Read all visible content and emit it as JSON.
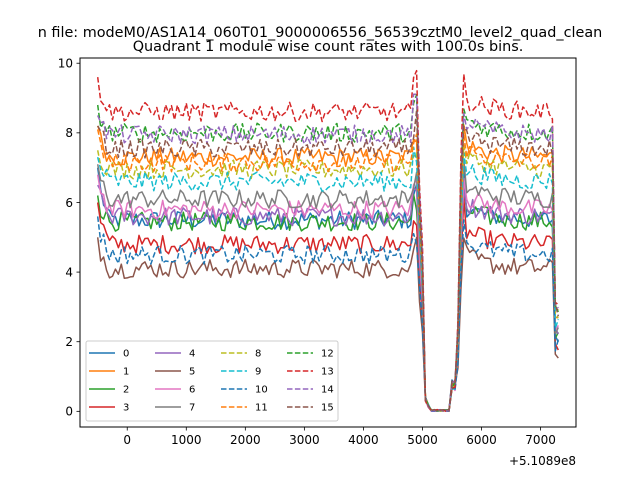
{
  "chart_data": {
    "type": "line",
    "suptitle": "n file: modeM0/AS1A14_060T01_9000006556_56539cztM0_level2_quad_clean",
    "title": "Quadrant 1 module wise count rates with 100.0s bins.",
    "xlabel": "",
    "ylabel": "",
    "x_offset_label": "+5.1089e8",
    "xlim": [
      -800,
      7600
    ],
    "ylim": [
      -0.45,
      10.15
    ],
    "xticks": [
      0,
      1000,
      2000,
      3000,
      4000,
      5000,
      6000,
      7000
    ],
    "xtick_labels": [
      "0",
      "1000",
      "2000",
      "3000",
      "4000",
      "5000",
      "6000",
      "7000"
    ],
    "yticks": [
      0,
      2,
      4,
      6,
      8,
      10
    ],
    "ytick_labels": [
      "0",
      "2",
      "4",
      "6",
      "8",
      "10"
    ],
    "grid": false,
    "legend_position": "lower-left",
    "legend_columns": 4,
    "x_start": -500,
    "x_step": 50,
    "x_end": 7300,
    "gap_start": 5000,
    "gap_end": 5550,
    "peak_x": 5700,
    "series": [
      {
        "name": "0",
        "color": "#1f77b4",
        "dashed": false,
        "level": 5.5,
        "start": 7.0
      },
      {
        "name": "1",
        "color": "#ff7f0e",
        "dashed": false,
        "level": 7.3,
        "start": 8.2
      },
      {
        "name": "2",
        "color": "#2ca02c",
        "dashed": false,
        "level": 5.45,
        "start": 6.2
      },
      {
        "name": "3",
        "color": "#d62728",
        "dashed": false,
        "level": 4.8,
        "start": 6.0
      },
      {
        "name": "4",
        "color": "#9467bd",
        "dashed": false,
        "level": 5.6,
        "start": 6.5
      },
      {
        "name": "5",
        "color": "#8c564b",
        "dashed": false,
        "level": 4.1,
        "start": 5.0
      },
      {
        "name": "6",
        "color": "#e377c2",
        "dashed": false,
        "level": 5.8,
        "start": 6.8
      },
      {
        "name": "7",
        "color": "#7f7f7f",
        "dashed": false,
        "level": 6.1,
        "start": 7.1
      },
      {
        "name": "8",
        "color": "#bcbd22",
        "dashed": true,
        "level": 6.95,
        "start": 7.5
      },
      {
        "name": "9",
        "color": "#17becf",
        "dashed": true,
        "level": 6.6,
        "start": 7.3
      },
      {
        "name": "10",
        "color": "#1f77b4",
        "dashed": true,
        "level": 4.5,
        "start": 5.6
      },
      {
        "name": "11",
        "color": "#ff7f0e",
        "dashed": true,
        "level": 7.15,
        "start": 8.1
      },
      {
        "name": "12",
        "color": "#2ca02c",
        "dashed": true,
        "level": 8.0,
        "start": 8.8
      },
      {
        "name": "13",
        "color": "#d62728",
        "dashed": true,
        "level": 8.6,
        "start": 9.6
      },
      {
        "name": "14",
        "color": "#9467bd",
        "dashed": true,
        "level": 7.95,
        "start": 8.5
      },
      {
        "name": "15",
        "color": "#8c564b",
        "dashed": true,
        "level": 7.55,
        "start": 8.2
      }
    ]
  }
}
